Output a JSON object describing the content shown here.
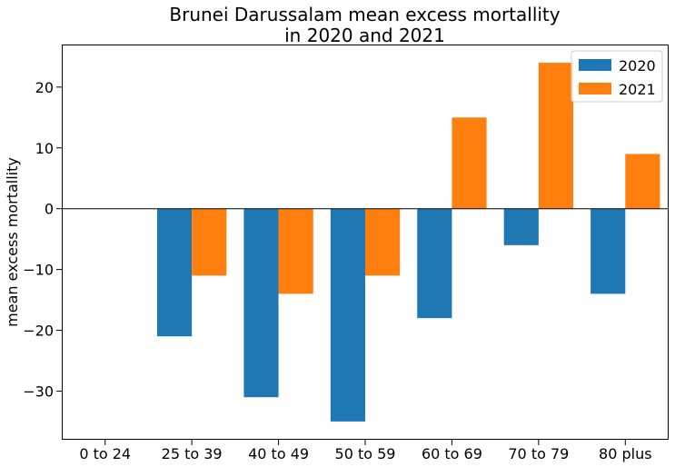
{
  "chart_data": {
    "type": "bar",
    "title": "Brunei Darussalam mean excess mortallity",
    "subtitle": "in 2020 and 2021",
    "xlabel": "",
    "ylabel": "mean excess mortallity",
    "categories": [
      "0 to 24",
      "25 to 39",
      "40 to 49",
      "50 to 59",
      "60 to 69",
      "70 to 79",
      "80 plus"
    ],
    "series": [
      {
        "name": "2020",
        "color": "#1f77b4",
        "values": [
          0,
          -21,
          -31,
          -35,
          -18,
          -6,
          -14
        ]
      },
      {
        "name": "2021",
        "color": "#ff7f0e",
        "values": [
          0,
          -11,
          -14,
          -11,
          15,
          24,
          9
        ]
      }
    ],
    "ylim": [
      -38,
      27
    ],
    "yticks": [
      -30,
      -20,
      -10,
      0,
      10,
      20
    ],
    "ytick_labels": [
      "−30",
      "−20",
      "−10",
      "0",
      "10",
      "20"
    ],
    "grid": false,
    "legend": "top-right"
  }
}
